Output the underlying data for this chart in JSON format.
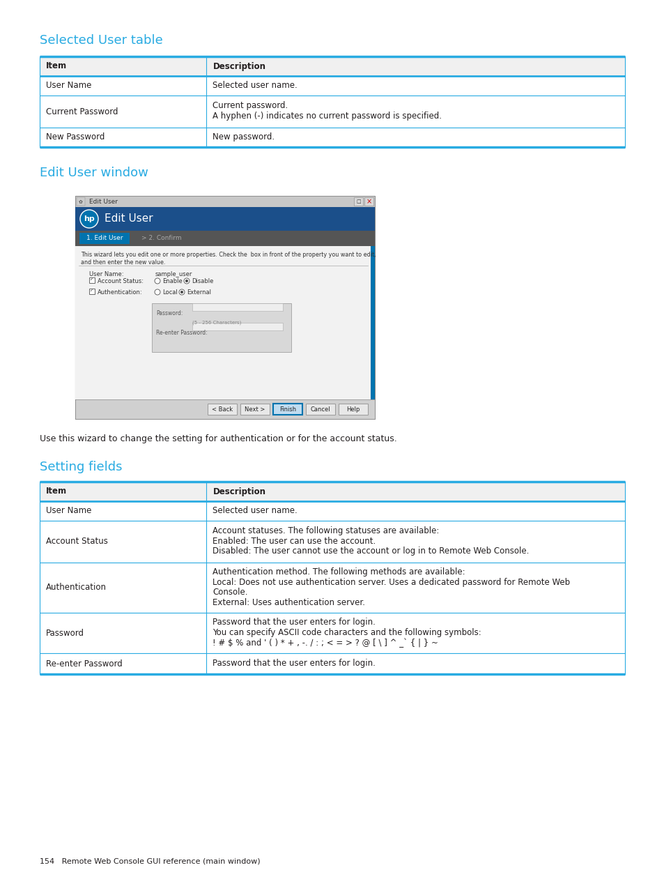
{
  "bg_color": "#ffffff",
  "cyan": "#29abe2",
  "text_color": "#231f20",
  "header_bg": "#f0f0f0",
  "section1_title": "Selected User table",
  "table1_headers": [
    "Item",
    "Description"
  ],
  "table1_rows": [
    [
      "User Name",
      "Selected user name."
    ],
    [
      "Current Password",
      "Current password.\nA hyphen (-) indicates no current password is specified."
    ],
    [
      "New Password",
      "New password."
    ]
  ],
  "section2_title": "Edit User window",
  "wizard_desc": "Use this wizard to change the setting for authentication or for the account status.",
  "section3_title": "Setting fields",
  "table2_headers": [
    "Item",
    "Description"
  ],
  "table2_rows": [
    [
      "User Name",
      "Selected user name."
    ],
    [
      "Account Status",
      "Account statuses. The following statuses are available:\nEnabled: The user can use the account.\nDisabled: The user cannot use the account or log in to Remote Web Console."
    ],
    [
      "Authentication",
      "Authentication method. The following methods are available:\nLocal: Does not use authentication server. Uses a dedicated password for Remote Web\nConsole.\nExternal: Uses authentication server."
    ],
    [
      "Password",
      "Password that the user enters for login.\nYou can specify ASCII code characters and the following symbols:\n! # $ % and ' ( ) * + , -. / : ; < = > ? @ [ \\ ] ^ _` { | } ~"
    ],
    [
      "Re-enter Password",
      "Password that the user enters for login."
    ]
  ],
  "footer_text": "154   Remote Web Console GUI reference (main window)"
}
